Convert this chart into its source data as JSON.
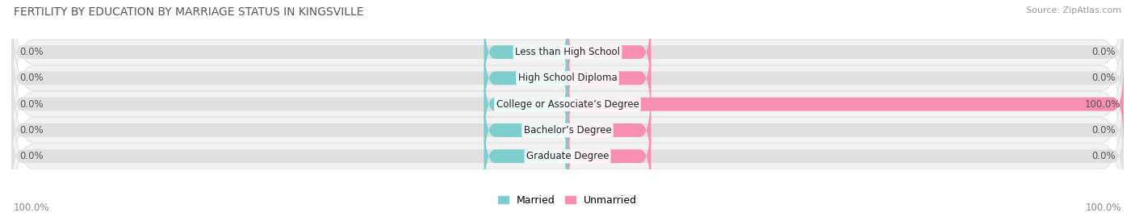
{
  "title": "FERTILITY BY EDUCATION BY MARRIAGE STATUS IN KINGSVILLE",
  "source": "Source: ZipAtlas.com",
  "categories": [
    "Less than High School",
    "High School Diploma",
    "College or Associate’s Degree",
    "Bachelor’s Degree",
    "Graduate Degree"
  ],
  "married_values": [
    0.0,
    0.0,
    0.0,
    0.0,
    0.0
  ],
  "unmarried_values": [
    0.0,
    0.0,
    100.0,
    0.0,
    0.0
  ],
  "married_color": "#7ECECE",
  "unmarried_color": "#F78FB3",
  "bar_bg_color": "#E0E0E0",
  "row_bg_color": "#F2F2F2",
  "row_bg_edge": "#DDDDDD",
  "stub_size": 15,
  "xlim": [
    -100,
    100
  ],
  "title_fontsize": 10,
  "source_fontsize": 8,
  "label_fontsize": 8.5,
  "legend_fontsize": 9,
  "bar_height": 0.52,
  "figsize": [
    14.06,
    2.69
  ],
  "dpi": 100
}
